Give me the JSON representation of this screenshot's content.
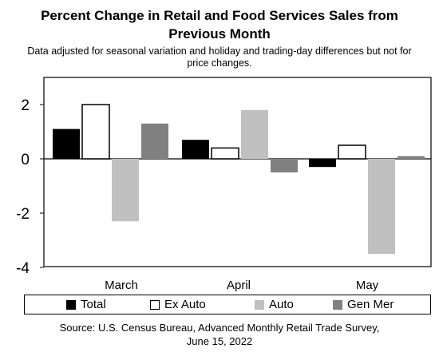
{
  "chart_data": {
    "type": "bar",
    "title_line1": "Percent Change in Retail and Food Services Sales from",
    "title_line2": "Previous Month",
    "subtitle_line1": "Data adjusted for seasonal variation and holiday and trading-day differences but not for",
    "subtitle_line2": "price changes.",
    "categories": [
      "March",
      "April",
      "May"
    ],
    "series": [
      {
        "name": "Total",
        "color": "#000000",
        "values": [
          1.1,
          0.7,
          -0.3
        ]
      },
      {
        "name": "Ex Auto",
        "color": "#ffffff",
        "values": [
          2.0,
          0.4,
          0.5
        ]
      },
      {
        "name": "Auto",
        "color": "#c0c0c0",
        "values": [
          -2.3,
          1.8,
          -3.5
        ]
      },
      {
        "name": "Gen Mer",
        "color": "#808080",
        "values": [
          1.3,
          -0.5,
          0.1
        ]
      }
    ],
    "yticks": [
      "2",
      "0",
      "-2",
      "-4"
    ],
    "ylim": [
      -4,
      3
    ],
    "source_line1": "Source: U.S. Census Bureau, Advanced Monthly Retail Trade Survey,",
    "source_line2": "June 15, 2022",
    "legend_position": "bottom"
  }
}
